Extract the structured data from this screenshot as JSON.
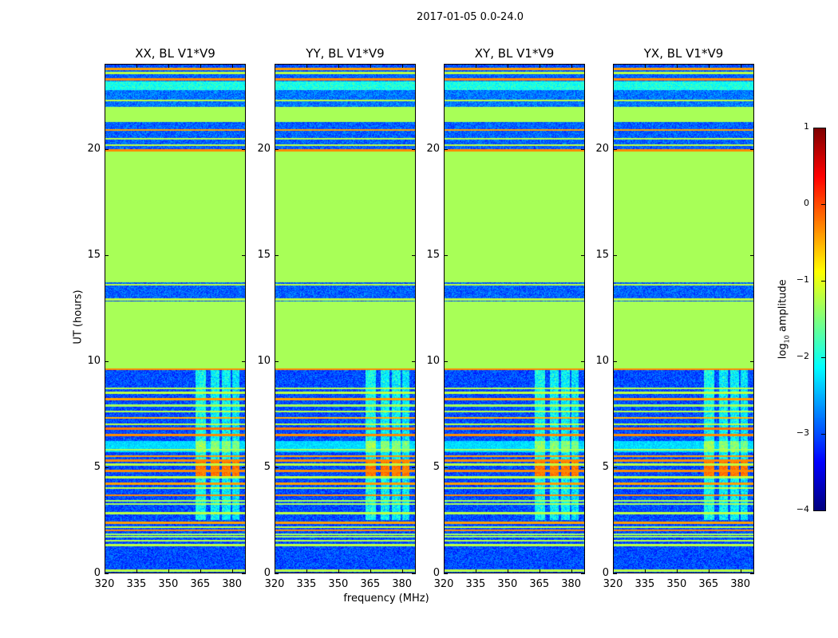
{
  "chart_data": {
    "type": "heatmap",
    "title": "2017-01-05 0.0-24.0",
    "xlabel": "frequency (MHz)",
    "ylabel": "UT (hours)",
    "xlim": [
      320,
      386.5
    ],
    "ylim": [
      0,
      24
    ],
    "xticks": [
      320,
      335,
      350,
      365,
      380
    ],
    "yticks": [
      0,
      5,
      10,
      15,
      20
    ],
    "panels": [
      {
        "title": "XX, BL V1*V9"
      },
      {
        "title": "YY, BL V1*V9"
      },
      {
        "title": "XY, BL V1*V9"
      },
      {
        "title": "YX, BL V1*V9"
      }
    ],
    "colorbar": {
      "label_main": "log",
      "label_sub": "10",
      "label_rest": " amplitude",
      "range": [
        -4,
        1
      ],
      "ticks": [
        "1",
        "0",
        "−1",
        "−2",
        "−3",
        "−4"
      ],
      "tick_values": [
        1,
        0,
        -1,
        -2,
        -3,
        -4
      ]
    },
    "bands": [
      {
        "from": 0,
        "to": 9.6,
        "level": -3.0,
        "noise": 0.35
      },
      {
        "from": 5.7,
        "to": 6.2,
        "level": -2.3,
        "noise": 0.2
      },
      {
        "from": 9.6,
        "to": 12.8,
        "level": -1.3,
        "noise": 0
      },
      {
        "from": 12.8,
        "to": 13.7,
        "level": -2.9,
        "noise": 0.35
      },
      {
        "from": 13.7,
        "to": 19.9,
        "level": -1.3,
        "noise": 0
      },
      {
        "from": 19.9,
        "to": 21.3,
        "level": -2.9,
        "noise": 0.35
      },
      {
        "from": 21.3,
        "to": 22.0,
        "level": -1.3,
        "noise": 0
      },
      {
        "from": 22.0,
        "to": 22.8,
        "level": -2.8,
        "noise": 0.35
      },
      {
        "from": 22.8,
        "to": 23.2,
        "level": -2.0,
        "noise": 0.3
      },
      {
        "from": 23.2,
        "to": 23.9,
        "level": -2.9,
        "noise": 0.3
      },
      {
        "from": 23.9,
        "to": 24,
        "level": -3.0,
        "noise": 0.35
      }
    ],
    "lines": [
      {
        "ut": 9.6,
        "value": -0.3
      },
      {
        "ut": 8.7,
        "value": -1.2
      },
      {
        "ut": 8.5,
        "value": -1.2
      },
      {
        "ut": 8.2,
        "value": -0.4
      },
      {
        "ut": 7.9,
        "value": -1.3
      },
      {
        "ut": 7.6,
        "value": -1.2
      },
      {
        "ut": 7.3,
        "value": -0.5
      },
      {
        "ut": 7.0,
        "value": -1.2
      },
      {
        "ut": 6.8,
        "value": -0.2
      },
      {
        "ut": 6.5,
        "value": -0.3
      },
      {
        "ut": 5.8,
        "value": -1.3
      },
      {
        "ut": 5.5,
        "value": -0.4
      },
      {
        "ut": 5.3,
        "value": -0.3
      },
      {
        "ut": 5.1,
        "value": -1.2
      },
      {
        "ut": 4.8,
        "value": -0.3
      },
      {
        "ut": 4.5,
        "value": -1.2
      },
      {
        "ut": 4.2,
        "value": -0.4
      },
      {
        "ut": 4.0,
        "value": -1.2
      },
      {
        "ut": 3.65,
        "value": -0.3
      },
      {
        "ut": 3.4,
        "value": -1.3
      },
      {
        "ut": 3.25,
        "value": -1.3
      },
      {
        "ut": 2.8,
        "value": -1.2
      },
      {
        "ut": 2.35,
        "value": -0.4
      },
      {
        "ut": 2.15,
        "value": -1.2
      },
      {
        "ut": 2.0,
        "value": -0.3
      },
      {
        "ut": 1.8,
        "value": -1.3
      },
      {
        "ut": 1.7,
        "value": -1.3
      },
      {
        "ut": 1.5,
        "value": -1.2
      },
      {
        "ut": 1.3,
        "value": -1.2
      },
      {
        "ut": 0.1,
        "value": -1.2
      },
      {
        "ut": 12.9,
        "value": -1.2
      },
      {
        "ut": 13.6,
        "value": -1.2
      },
      {
        "ut": 19.95,
        "value": -0.3
      },
      {
        "ut": 20.2,
        "value": -1.2
      },
      {
        "ut": 20.5,
        "value": -1.2
      },
      {
        "ut": 20.9,
        "value": -0.4
      },
      {
        "ut": 22.3,
        "value": -1.2
      },
      {
        "ut": 23.3,
        "value": -0.3
      },
      {
        "ut": 23.6,
        "value": -1.2
      },
      {
        "ut": 23.8,
        "value": -0.4
      }
    ],
    "rfi": [
      {
        "from": 363,
        "to": 368,
        "ut_from": 2.5,
        "ut_to": 9.6,
        "boost": 1.1
      },
      {
        "from": 370,
        "to": 374.5,
        "ut_from": 2.5,
        "ut_to": 9.6,
        "boost": 1.0
      },
      {
        "from": 375.5,
        "to": 379.5,
        "ut_from": 2.5,
        "ut_to": 9.6,
        "boost": 1.0
      },
      {
        "from": 380.5,
        "to": 384,
        "ut_from": 2.5,
        "ut_to": 9.6,
        "boost": 0.9
      }
    ],
    "hotspot": {
      "ut_from": 4.5,
      "ut_to": 5.25,
      "value": -0.2
    }
  }
}
